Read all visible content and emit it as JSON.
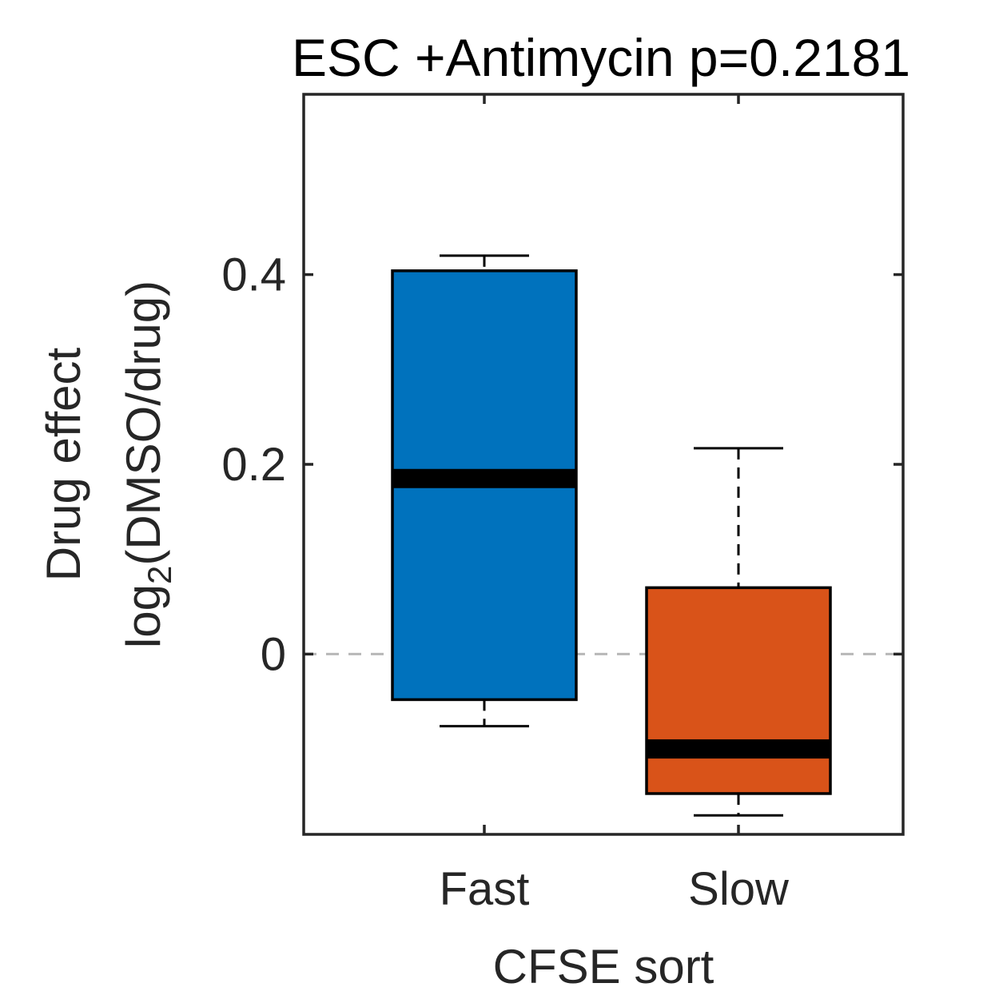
{
  "chart_data": {
    "type": "box",
    "title": "ESC +Antimycin p=0.2181",
    "xlabel": "CFSE sort",
    "ylabel_line1": "Drug effect",
    "ylabel_line2": {
      "prefix": "log",
      "subscript": "2",
      "suffix": "(DMSO/drug)"
    },
    "categories": [
      "Fast",
      "Slow"
    ],
    "ylim": [
      -0.19,
      0.59
    ],
    "yticks": [
      0,
      0.2,
      0.4
    ],
    "ytick_labels": [
      "0",
      "0.2",
      "0.4"
    ],
    "reference_line": 0,
    "grid": false,
    "boxes": [
      {
        "category": "Fast",
        "color": "#0072BD",
        "whisker_low": -0.076,
        "q1": -0.048,
        "median": 0.185,
        "q3": 0.404,
        "whisker_high": 0.42
      },
      {
        "category": "Slow",
        "color": "#D95319",
        "whisker_low": -0.17,
        "q1": -0.147,
        "median": -0.1,
        "q3": 0.07,
        "whisker_high": 0.217
      }
    ]
  }
}
